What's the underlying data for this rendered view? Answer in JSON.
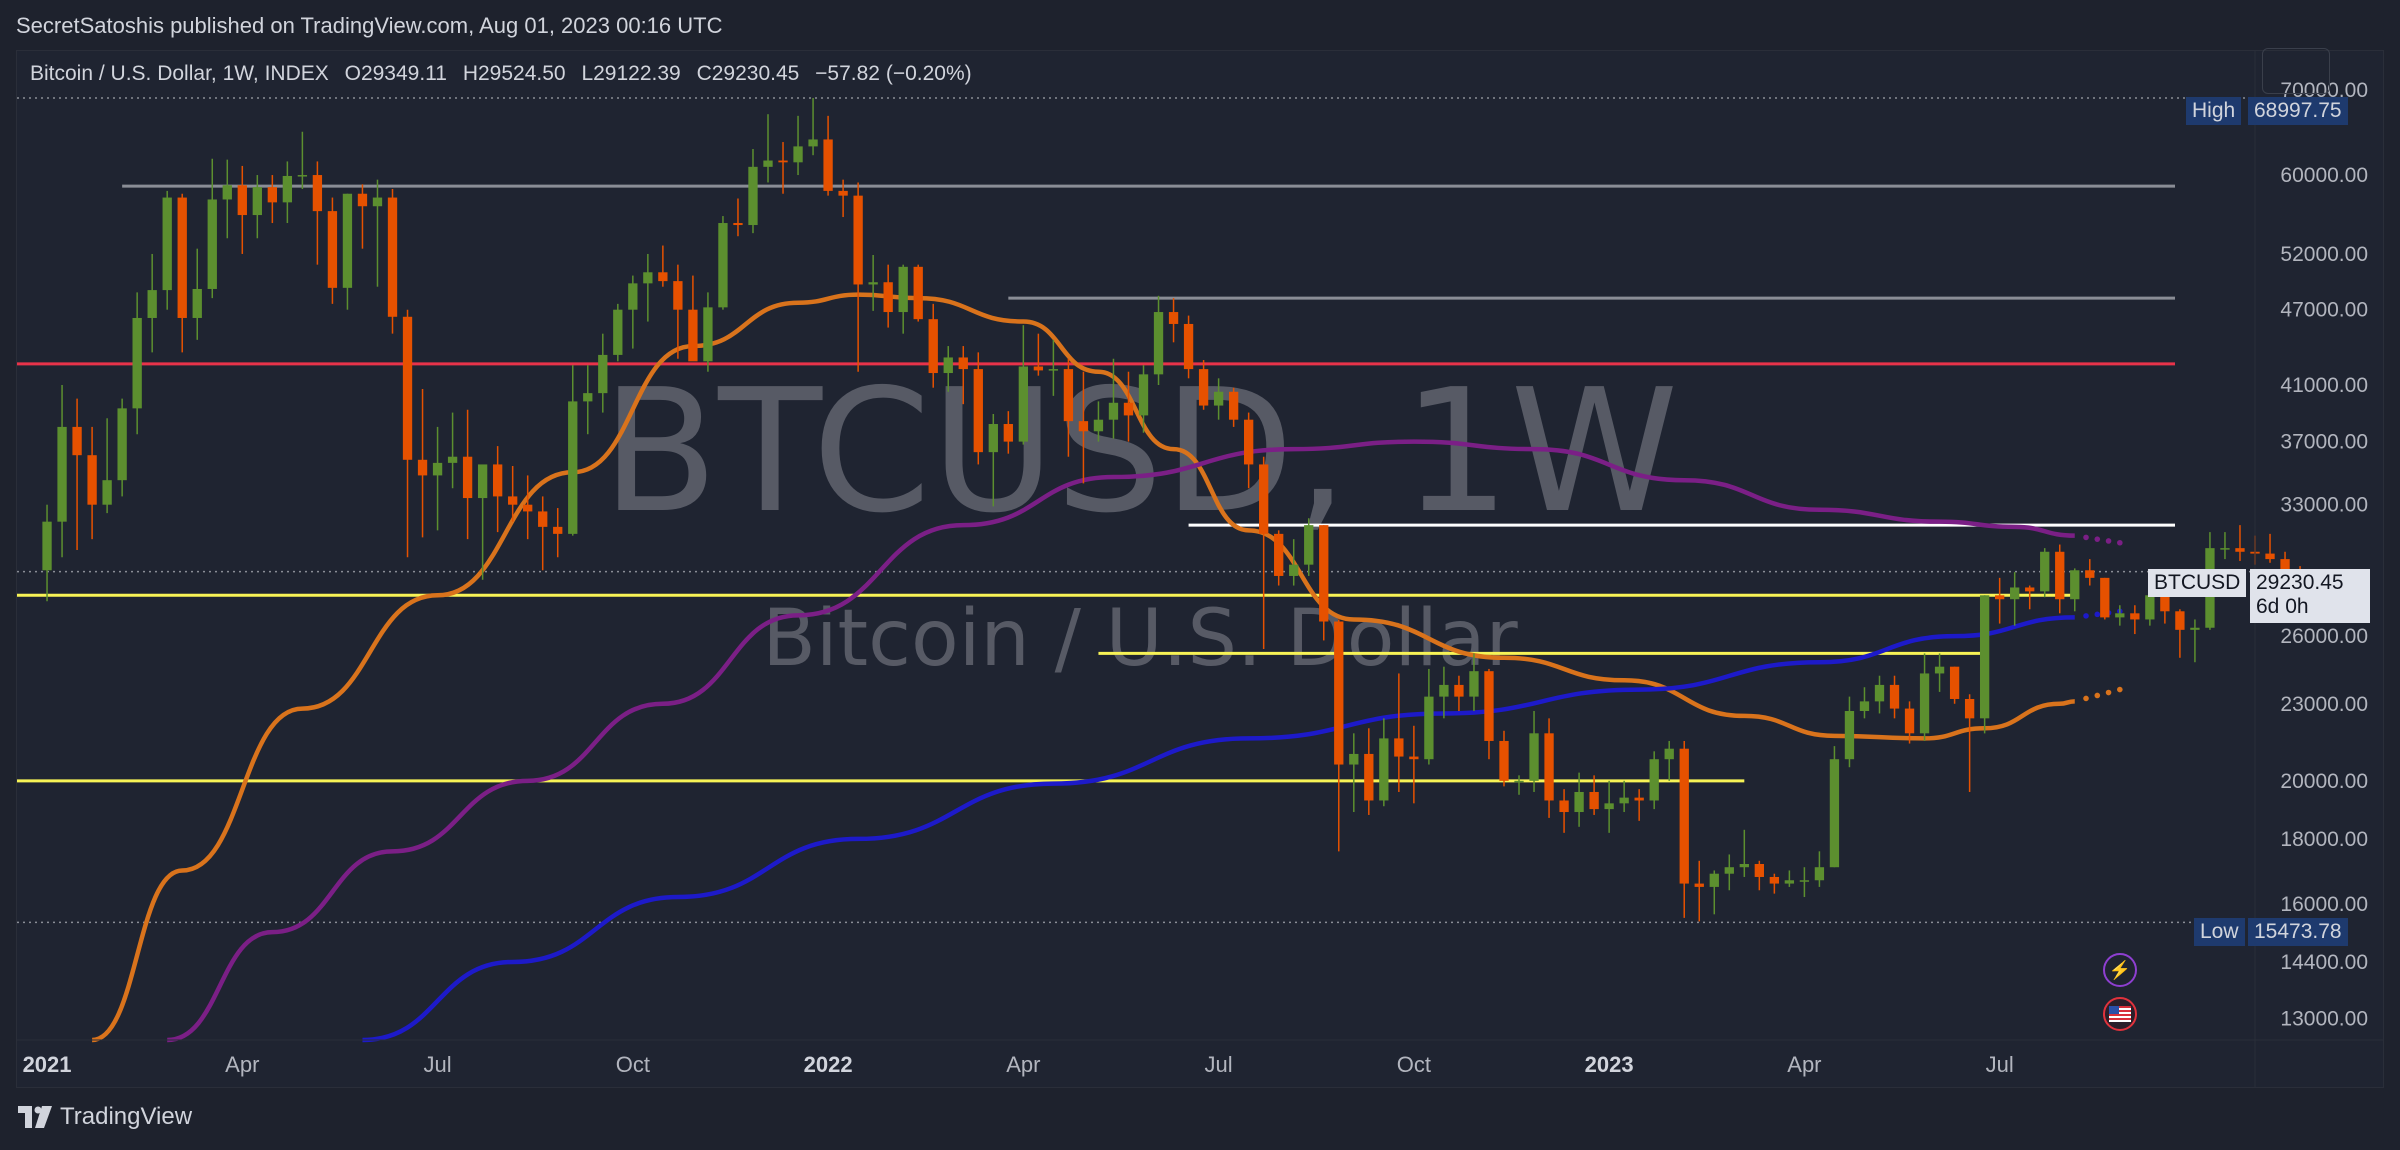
{
  "header": {
    "published": "SecretSatoshis published on TradingView.com, Aug 01, 2023 00:16 UTC"
  },
  "legend": {
    "symbol_desc": "Bitcoin / U.S. Dollar, 1W, INDEX",
    "open": "O29349.11",
    "high": "H29524.50",
    "low": "L29122.39",
    "close": "C29230.45",
    "change": "−57.82 (−0.20%)"
  },
  "watermark": {
    "title": "BTCUSD, 1W",
    "subtitle": "Bitcoin / U.S. Dollar"
  },
  "price_tags": {
    "high_label": "High",
    "high_value": "68997.75",
    "low_label": "Low",
    "low_value": "15473.78",
    "symbol": "BTCUSD",
    "last_value": "29230.45",
    "countdown": "6d 0h"
  },
  "footer": {
    "brand": "TradingView"
  },
  "icons": {
    "flash": "lightning-icon",
    "flag": "us-flag-icon",
    "logo": "tradingview-logo-icon"
  },
  "colors": {
    "up": "#5c8f2f",
    "down": "#e65100",
    "red_line": "#e8334a",
    "yellow_line": "#f7f356",
    "grey_line": "#8a8d96",
    "white_line": "#ffffff",
    "ma_orange": "#d9731c",
    "ma_purple": "#7b1f86",
    "ma_blue": "#1d1ac9",
    "tag_blue": "#1e3a6e"
  },
  "chart_data": {
    "type": "candlestick",
    "symbol": "BTCUSD",
    "interval": "1W",
    "y_scale": "log",
    "ylim": [
      12500,
      75000
    ],
    "y_ticks": [
      {
        "label": "70000.00",
        "value": 70000
      },
      {
        "label": "60000.00",
        "value": 60000
      },
      {
        "label": "52000.00",
        "value": 52000
      },
      {
        "label": "47000.00",
        "value": 47000
      },
      {
        "label": "41000.00",
        "value": 41000
      },
      {
        "label": "37000.00",
        "value": 37000
      },
      {
        "label": "33000.00",
        "value": 33000
      },
      {
        "label": "26000.00",
        "value": 26000
      },
      {
        "label": "23000.00",
        "value": 23000
      },
      {
        "label": "20000.00",
        "value": 20000
      },
      {
        "label": "18000.00",
        "value": 18000
      },
      {
        "label": "16000.00",
        "value": 16000
      },
      {
        "label": "14400.00",
        "value": 14400
      },
      {
        "label": "13000.00",
        "value": 13000
      }
    ],
    "x_start": "2021-01-04",
    "x_range": [
      "2020-12-21",
      "2023-10-30"
    ],
    "x_ticks": [
      {
        "label": "2021",
        "date": "2021-01-04",
        "bold": true
      },
      {
        "label": "Apr",
        "date": "2021-04-05"
      },
      {
        "label": "Jul",
        "date": "2021-07-05"
      },
      {
        "label": "Oct",
        "date": "2021-10-04"
      },
      {
        "label": "2022",
        "date": "2022-01-03",
        "bold": true
      },
      {
        "label": "Apr",
        "date": "2022-04-04"
      },
      {
        "label": "Jul",
        "date": "2022-07-04"
      },
      {
        "label": "Oct",
        "date": "2022-10-03"
      },
      {
        "label": "2023",
        "date": "2023-01-02",
        "bold": true
      },
      {
        "label": "Apr",
        "date": "2023-04-03"
      },
      {
        "label": "Jul",
        "date": "2023-07-03"
      }
    ],
    "candles": [
      [
        29300,
        33000,
        27700,
        32000
      ],
      [
        32000,
        41000,
        30000,
        38000
      ],
      [
        38000,
        40000,
        30400,
        36100
      ],
      [
        36100,
        38000,
        31000,
        33000
      ],
      [
        33000,
        38600,
        32500,
        34500
      ],
      [
        34500,
        40000,
        33500,
        39300
      ],
      [
        39300,
        48500,
        37500,
        46300
      ],
      [
        46300,
        52000,
        43500,
        48700
      ],
      [
        48700,
        58300,
        47000,
        57600
      ],
      [
        57600,
        58000,
        43500,
        46300
      ],
      [
        46300,
        52500,
        44500,
        48800
      ],
      [
        48800,
        61800,
        48000,
        57400
      ],
      [
        57400,
        61700,
        53500,
        58900
      ],
      [
        58900,
        61000,
        52000,
        55800
      ],
      [
        55800,
        60000,
        53500,
        58700
      ],
      [
        58700,
        60000,
        55000,
        57100
      ],
      [
        57100,
        61500,
        55000,
        59900
      ],
      [
        59900,
        64900,
        58500,
        60000
      ],
      [
        60000,
        61500,
        51000,
        56200
      ],
      [
        56200,
        57600,
        47500,
        48900
      ],
      [
        48900,
        58000,
        47000,
        58000
      ],
      [
        58000,
        59000,
        52500,
        56700
      ],
      [
        56700,
        59500,
        49000,
        57600
      ],
      [
        57600,
        58500,
        45000,
        46400
      ],
      [
        46400,
        47000,
        30000,
        35800
      ],
      [
        35800,
        40700,
        31100,
        34800
      ],
      [
        34800,
        38000,
        31500,
        35600
      ],
      [
        35600,
        39000,
        34000,
        36000
      ],
      [
        36000,
        39200,
        31000,
        33400
      ],
      [
        33400,
        35000,
        28800,
        35500
      ],
      [
        35500,
        36700,
        31400,
        33500
      ],
      [
        33500,
        35400,
        32000,
        33000
      ],
      [
        33000,
        34800,
        31000,
        32600
      ],
      [
        32600,
        33500,
        29300,
        31700
      ],
      [
        31700,
        32800,
        30000,
        31300
      ],
      [
        31300,
        42500,
        31200,
        39800
      ],
      [
        39800,
        42500,
        37500,
        40400
      ],
      [
        40400,
        45000,
        39000,
        43300
      ],
      [
        43300,
        47500,
        42800,
        47000
      ],
      [
        47000,
        50000,
        43800,
        49300
      ],
      [
        49300,
        52000,
        46000,
        50300
      ],
      [
        50300,
        52800,
        49000,
        49500
      ],
      [
        49500,
        51000,
        43000,
        47000
      ],
      [
        47000,
        50000,
        43000,
        42800
      ],
      [
        42800,
        48500,
        42000,
        47200
      ],
      [
        47200,
        55700,
        47000,
        55000
      ],
      [
        55000,
        57500,
        53700,
        54800
      ],
      [
        54800,
        62900,
        54000,
        60900
      ],
      [
        60900,
        67000,
        59200,
        61600
      ],
      [
        61600,
        63700,
        58000,
        61400
      ],
      [
        61400,
        66800,
        60000,
        63200
      ],
      [
        63200,
        69000,
        62200,
        64000
      ],
      [
        64000,
        66800,
        57800,
        58300
      ],
      [
        58300,
        59500,
        55600,
        57800
      ],
      [
        57800,
        59200,
        42000,
        49200
      ],
      [
        49200,
        51900,
        46900,
        49400
      ],
      [
        49400,
        51000,
        45500,
        46800
      ],
      [
        46800,
        51000,
        45000,
        50800
      ],
      [
        50800,
        51000,
        46000,
        46200
      ],
      [
        46200,
        47500,
        40800,
        41900
      ],
      [
        41900,
        44000,
        40500,
        43100
      ],
      [
        43100,
        44000,
        39600,
        42200
      ],
      [
        42200,
        43500,
        35500,
        36300
      ],
      [
        36300,
        38900,
        32900,
        38200
      ],
      [
        38200,
        39100,
        36200,
        37000
      ],
      [
        37000,
        45700,
        36800,
        42400
      ],
      [
        42400,
        45000,
        41700,
        42100
      ],
      [
        42100,
        44500,
        40200,
        42200
      ],
      [
        42200,
        43000,
        36000,
        38400
      ],
      [
        38400,
        42000,
        34300,
        37700
      ],
      [
        37700,
        39800,
        37000,
        38500
      ],
      [
        38500,
        43000,
        37200,
        39700
      ],
      [
        39700,
        42000,
        37000,
        38800
      ],
      [
        38800,
        42500,
        37600,
        41800
      ],
      [
        41800,
        48200,
        41000,
        46800
      ],
      [
        46800,
        48000,
        44300,
        45800
      ],
      [
        45800,
        46500,
        41500,
        42200
      ],
      [
        42200,
        42900,
        39200,
        39500
      ],
      [
        39500,
        41500,
        38500,
        40500
      ],
      [
        40500,
        40800,
        38000,
        38500
      ],
      [
        38500,
        39000,
        34000,
        35500
      ],
      [
        35500,
        36000,
        25400,
        31300
      ],
      [
        31300,
        31500,
        28500,
        29000
      ],
      [
        29000,
        31000,
        28500,
        29600
      ],
      [
        29600,
        32200,
        29000,
        31800
      ],
      [
        31800,
        31800,
        25800,
        26700
      ],
      [
        26700,
        26800,
        17600,
        20600
      ],
      [
        20600,
        21800,
        18900,
        21000
      ],
      [
        21000,
        22000,
        18800,
        19300
      ],
      [
        19300,
        22400,
        19100,
        21600
      ],
      [
        21600,
        24300,
        19600,
        20900
      ],
      [
        20900,
        22100,
        19200,
        20800
      ],
      [
        20800,
        24500,
        20600,
        23300
      ],
      [
        23300,
        24600,
        22400,
        23800
      ],
      [
        23800,
        24200,
        22700,
        23300
      ],
      [
        23300,
        25200,
        22700,
        24400
      ],
      [
        24400,
        24500,
        20800,
        21500
      ],
      [
        21500,
        21900,
        19800,
        20000
      ],
      [
        20000,
        20200,
        19500,
        20000
      ],
      [
        20000,
        22700,
        19600,
        21800
      ],
      [
        21800,
        22400,
        18700,
        19300
      ],
      [
        19300,
        19700,
        18200,
        18900
      ],
      [
        18900,
        20300,
        18400,
        19600
      ],
      [
        19600,
        20200,
        18800,
        19000
      ],
      [
        19000,
        20000,
        18200,
        19200
      ],
      [
        19200,
        20000,
        18900,
        19400
      ],
      [
        19400,
        19700,
        18600,
        19300
      ],
      [
        19300,
        21100,
        19000,
        20800
      ],
      [
        20800,
        21500,
        20000,
        21200
      ],
      [
        21200,
        21500,
        15600,
        16600
      ],
      [
        16600,
        17300,
        15500,
        16500
      ],
      [
        16500,
        17000,
        15700,
        16900
      ],
      [
        16900,
        17500,
        16400,
        17100
      ],
      [
        17100,
        18300,
        16800,
        17200
      ],
      [
        17200,
        17300,
        16400,
        16800
      ],
      [
        16800,
        16900,
        16300,
        16600
      ],
      [
        16600,
        17000,
        16500,
        16700
      ],
      [
        16700,
        17100,
        16200,
        16700
      ],
      [
        16700,
        17600,
        16500,
        17100
      ],
      [
        17100,
        21300,
        17100,
        20800
      ],
      [
        20800,
        23300,
        20500,
        22700
      ],
      [
        22700,
        23700,
        22400,
        23100
      ],
      [
        23100,
        24200,
        22600,
        23800
      ],
      [
        23800,
        24200,
        22400,
        22800
      ],
      [
        22800,
        23100,
        21400,
        21800
      ],
      [
        21800,
        25200,
        21500,
        24300
      ],
      [
        24300,
        25200,
        23500,
        24600
      ],
      [
        24600,
        24600,
        23000,
        23200
      ],
      [
        23200,
        23400,
        19600,
        22400
      ],
      [
        22400,
        28000,
        21800,
        28000
      ],
      [
        28000,
        28900,
        26600,
        27800
      ],
      [
        27800,
        29200,
        26500,
        28400
      ],
      [
        28400,
        28500,
        27300,
        28200
      ],
      [
        28200,
        30500,
        27900,
        30300
      ],
      [
        30300,
        30700,
        27100,
        27800
      ],
      [
        27800,
        29400,
        27200,
        29300
      ],
      [
        29300,
        29900,
        28500,
        28900
      ],
      [
        28900,
        28900,
        26800,
        26900
      ],
      [
        26900,
        27500,
        26500,
        27100
      ],
      [
        27100,
        27500,
        26100,
        26800
      ],
      [
        26800,
        28300,
        26500,
        28000
      ],
      [
        28000,
        28400,
        26600,
        27200
      ],
      [
        27200,
        27300,
        25000,
        26300
      ],
      [
        26300,
        26800,
        24800,
        26400
      ],
      [
        26400,
        31400,
        26300,
        30500
      ],
      [
        30500,
        31400,
        29900,
        30500
      ],
      [
        30500,
        31800,
        29800,
        30300
      ],
      [
        30300,
        31200,
        29600,
        30200
      ],
      [
        30200,
        31300,
        29700,
        29900
      ],
      [
        29900,
        30300,
        29100,
        29300
      ],
      [
        29349.11,
        29524.5,
        29122.39,
        29230.45
      ]
    ],
    "levels": [
      {
        "kind": "grey",
        "value": 58800,
        "from": "2021-02-08",
        "to": "2023-10-30"
      },
      {
        "kind": "grey",
        "value": 48000,
        "from": "2022-03-28",
        "to": "2023-10-30"
      },
      {
        "kind": "red",
        "value": 42600,
        "from": "2020-12-21",
        "to": "2023-10-30"
      },
      {
        "kind": "white",
        "value": 31800,
        "from": "2022-06-20",
        "to": "2023-10-30"
      },
      {
        "kind": "yellow",
        "value": 28000,
        "from": "2020-12-21",
        "to": "2023-08-07"
      },
      {
        "kind": "yellow",
        "value": 25200,
        "from": "2022-05-09",
        "to": "2023-06-26"
      },
      {
        "kind": "yellow",
        "value": 20000,
        "from": "2020-12-21",
        "to": "2023-03-06"
      }
    ],
    "moving_averages": [
      {
        "kind": "orange",
        "points": [
          [
            "2021-01-25",
            12500
          ],
          [
            "2021-03-08",
            17000
          ],
          [
            "2021-05-03",
            22800
          ],
          [
            "2021-07-05",
            28000
          ],
          [
            "2021-09-06",
            35000
          ],
          [
            "2021-11-01",
            44000
          ],
          [
            "2021-12-20",
            47600
          ],
          [
            "2022-01-17",
            48300
          ],
          [
            "2022-02-14",
            48000
          ],
          [
            "2022-04-04",
            46000
          ],
          [
            "2022-05-09",
            42000
          ],
          [
            "2022-06-13",
            36500
          ],
          [
            "2022-07-18",
            31500
          ],
          [
            "2022-09-05",
            26800
          ],
          [
            "2022-11-14",
            25000
          ],
          [
            "2023-01-09",
            24000
          ],
          [
            "2023-03-06",
            22500
          ],
          [
            "2023-04-17",
            21700
          ],
          [
            "2023-05-29",
            21600
          ],
          [
            "2023-06-26",
            22000
          ],
          [
            "2023-07-31",
            23000
          ],
          [
            "2023-08-07",
            23100
          ]
        ],
        "dots_to": [
          "2023-08-28",
          23600
        ]
      },
      {
        "kind": "purple",
        "points": [
          [
            "2021-03-01",
            12500
          ],
          [
            "2021-04-19",
            15200
          ],
          [
            "2021-06-14",
            17600
          ],
          [
            "2021-08-16",
            20000
          ],
          [
            "2021-10-18",
            23000
          ],
          [
            "2021-12-20",
            27000
          ],
          [
            "2022-03-07",
            31800
          ],
          [
            "2022-05-16",
            34700
          ],
          [
            "2022-08-08",
            36500
          ],
          [
            "2022-10-03",
            37000
          ],
          [
            "2022-11-28",
            36500
          ],
          [
            "2023-02-06",
            34500
          ],
          [
            "2023-04-10",
            32700
          ],
          [
            "2023-06-05",
            32000
          ],
          [
            "2023-07-10",
            31700
          ],
          [
            "2023-08-07",
            31200
          ]
        ],
        "dots_to": [
          "2023-08-28",
          30800
        ]
      },
      {
        "kind": "blue",
        "points": [
          [
            "2021-05-31",
            12500
          ],
          [
            "2021-08-09",
            14400
          ],
          [
            "2021-10-25",
            16200
          ],
          [
            "2022-01-17",
            18000
          ],
          [
            "2022-04-18",
            19900
          ],
          [
            "2022-07-18",
            21600
          ],
          [
            "2022-10-17",
            22600
          ],
          [
            "2023-01-16",
            23600
          ],
          [
            "2023-04-10",
            24800
          ],
          [
            "2023-06-12",
            26000
          ],
          [
            "2023-08-07",
            26900
          ]
        ],
        "dots_to": [
          "2023-08-28",
          27200
        ]
      }
    ]
  }
}
